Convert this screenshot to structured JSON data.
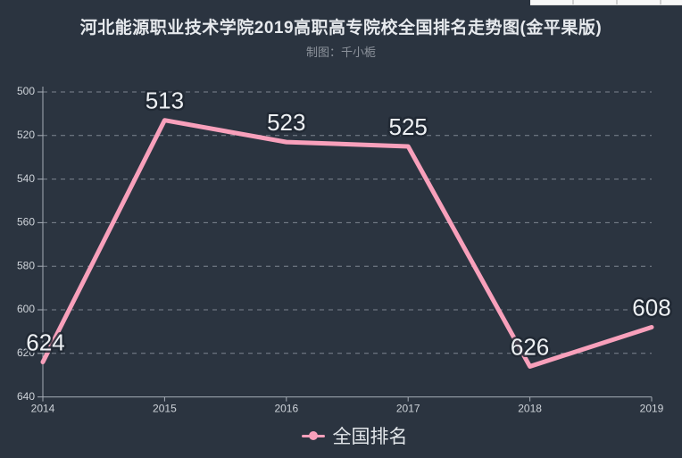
{
  "header": {
    "title": "河北能源职业技术学院2019高职高专院校全国排名走势图(金平果版)",
    "subtitle": "制图：千小栀"
  },
  "chart_data": {
    "type": "line",
    "title": "河北能源职业技术学院2019高职高专院校全国排名走势图(金平果版)",
    "subtitle": "制图：千小栀",
    "categories": [
      "2014",
      "2015",
      "2016",
      "2017",
      "2018",
      "2019"
    ],
    "series": [
      {
        "name": "全国排名",
        "values": [
          624,
          513,
          523,
          525,
          626,
          608
        ]
      }
    ],
    "y_ticks": [
      500,
      520,
      540,
      560,
      580,
      600,
      620,
      640
    ],
    "ylim": [
      500,
      640
    ],
    "y_axis_inverted": true,
    "grid": "dashed-horizontal",
    "legend_position": "bottom",
    "data_labels_shown": true
  },
  "legend": {
    "label": "全国排名"
  },
  "colors": {
    "background": "#2b3440",
    "line": "#f8a0bb",
    "axis": "#a6adb6",
    "grid": "#99a1ab",
    "title": "#e6e9ed",
    "subtitle": "#8d939c",
    "tick_label": "#ced3d9",
    "data_label": "#edf0f3"
  }
}
